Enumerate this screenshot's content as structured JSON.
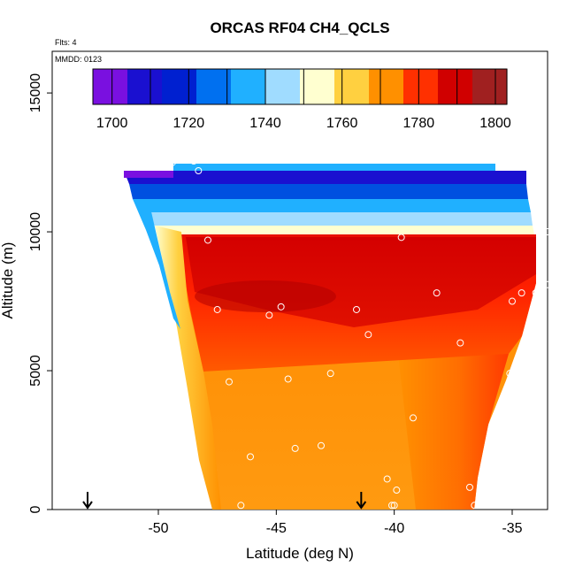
{
  "chart_data": {
    "type": "heatmap",
    "title": "ORCAS RF04 CH4_QCLS",
    "info_lines": [
      "Flts: 4",
      "MMDD: 0123"
    ],
    "xlabel": "Latitude (deg N)",
    "ylabel": "Altitude (m)",
    "xlim": [
      -54.5,
      -33.5
    ],
    "ylim": [
      0,
      16500
    ],
    "x_ticks": [
      -50,
      -45,
      -40,
      -35
    ],
    "x_tick_labels": [
      "-50",
      "-45",
      "-40",
      "-35"
    ],
    "y_ticks": [
      0,
      5000,
      10000,
      15000
    ],
    "y_tick_labels": [
      "0",
      "5000",
      "10000",
      "15000"
    ],
    "colorbar": {
      "range": [
        1695,
        1803
      ],
      "ticks": [
        1700,
        1720,
        1740,
        1760,
        1780,
        1800
      ],
      "tick_labels": [
        "1700",
        "1720",
        "1740",
        "1760",
        "1780",
        "1800"
      ],
      "dividers": [
        1700,
        1710,
        1720,
        1730,
        1740,
        1750,
        1760,
        1770,
        1780,
        1790,
        1800
      ],
      "colors": [
        "#7a10e0",
        "#1a10d0",
        "#0020d0",
        "#0070f0",
        "#20b0ff",
        "#a0dcff",
        "#ffffd0",
        "#ffd040",
        "#ff9000",
        "#ff3000",
        "#d00000",
        "#a02020"
      ]
    },
    "field_boundary": {
      "left_edge": [
        [
          -48.6,
          12450
        ],
        [
          -48.0,
          10000
        ],
        [
          -47.5,
          7500
        ],
        [
          -47.0,
          5000
        ],
        [
          -46.6,
          2500
        ],
        [
          -46.4,
          0
        ]
      ],
      "right_edge": [
        [
          -36.5,
          0
        ],
        [
          -36.0,
          2500
        ],
        [
          -35.0,
          5000
        ],
        [
          -34.0,
          7500
        ],
        [
          -33.5,
          10000
        ],
        [
          -33.5,
          12400
        ]
      ]
    },
    "series": [
      {
        "name": "",
        "points": [
          [
            -50.8,
            12450
          ],
          [
            -50.0,
            12450
          ],
          [
            -49.4,
            12500
          ],
          [
            -48.5,
            12550
          ],
          [
            -48.3,
            12200
          ],
          [
            -38.3,
            12900
          ],
          [
            -38.0,
            12900
          ],
          [
            -36.1,
            12800
          ],
          [
            -34.8,
            12900
          ],
          [
            -34.1,
            12200
          ],
          [
            -33.5,
            10000
          ],
          [
            -33.5,
            8100
          ],
          [
            -34.0,
            7800
          ],
          [
            -34.6,
            7800
          ],
          [
            -35.0,
            7500
          ],
          [
            -35.1,
            4900
          ],
          [
            -37.2,
            6000
          ],
          [
            -38.2,
            7800
          ],
          [
            -39.7,
            9800
          ],
          [
            -41.1,
            6300
          ],
          [
            -41.6,
            7200
          ],
          [
            -42.7,
            4900
          ],
          [
            -44.5,
            4700
          ],
          [
            -44.8,
            7300
          ],
          [
            -45.3,
            7000
          ],
          [
            -47.9,
            9700
          ],
          [
            -47.5,
            7200
          ],
          [
            -47.0,
            4600
          ],
          [
            -46.1,
            1900
          ],
          [
            -44.2,
            2200
          ],
          [
            -43.1,
            2300
          ],
          [
            -39.2,
            3300
          ],
          [
            -40.3,
            1100
          ],
          [
            -39.9,
            700
          ],
          [
            -40.1,
            150
          ],
          [
            -40.0,
            150
          ],
          [
            -36.8,
            800
          ],
          [
            -36.6,
            150
          ],
          [
            -46.5,
            150
          ]
        ]
      }
    ],
    "flight_markers_lat": [
      -53.0,
      -41.4
    ]
  }
}
